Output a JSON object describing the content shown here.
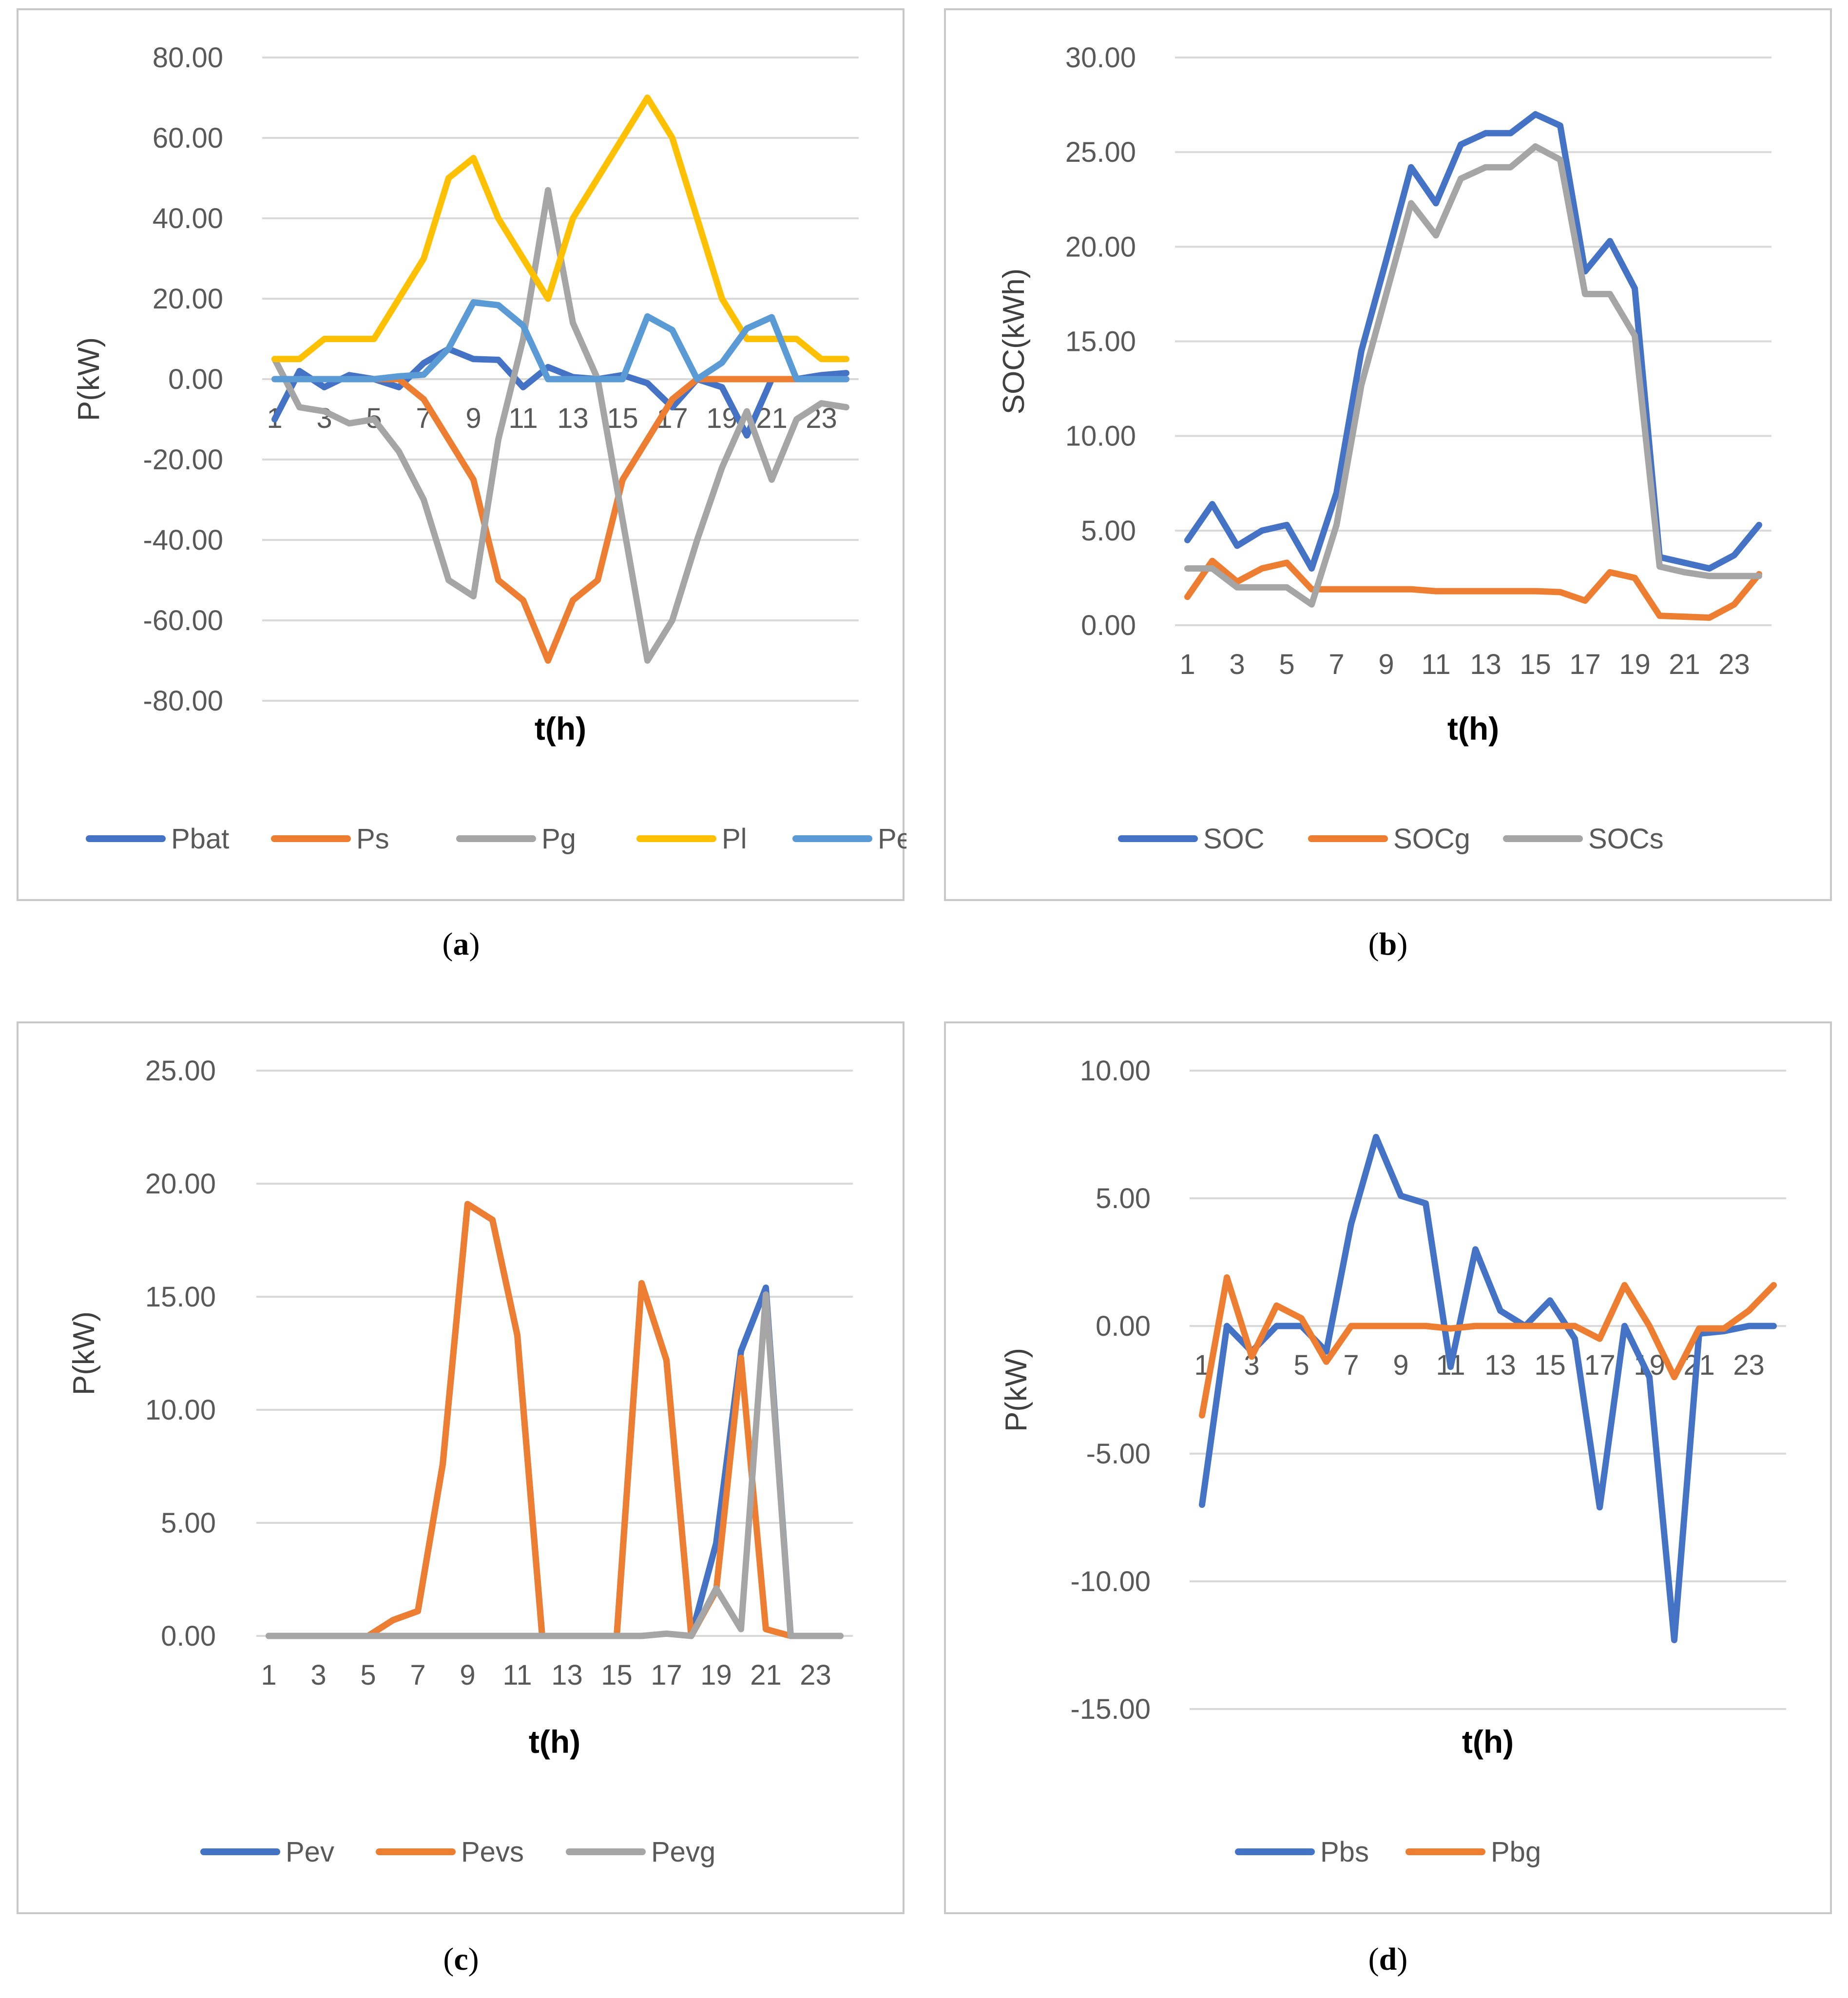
{
  "chart_data": [
    {
      "id": "a",
      "type": "line",
      "caption_label": "a",
      "xlabel": "t(h)",
      "ylabel": "P(kW)",
      "ylim": [
        -80,
        80
      ],
      "ymin": -80,
      "ymax": 80,
      "ytick_step": 20,
      "ytick_labels": [
        "80.00",
        "60.00",
        "40.00",
        "20.00",
        "0.00",
        "-20.00",
        "-40.00",
        "-60.00",
        "-80.00"
      ],
      "x_axis_at": 0,
      "categories": [
        "1",
        "2",
        "3",
        "4",
        "5",
        "6",
        "7",
        "8",
        "9",
        "10",
        "11",
        "12",
        "13",
        "14",
        "15",
        "16",
        "17",
        "18",
        "19",
        "20",
        "21",
        "22",
        "23",
        "24"
      ],
      "xtick_labels": [
        "1",
        "3",
        "5",
        "7",
        "9",
        "11",
        "13",
        "15",
        "17",
        "19",
        "21",
        "23"
      ],
      "series": [
        {
          "name": "Pbat",
          "color": "#4472C4",
          "values": [
            -10,
            2,
            -2,
            1,
            0,
            -2,
            4,
            7.5,
            5,
            4.8,
            -2,
            3,
            0.5,
            0,
            1,
            -1,
            -7,
            0,
            -2,
            -14,
            0,
            0,
            1,
            1.5
          ]
        },
        {
          "name": "Ps",
          "color": "#ED7D31",
          "values": [
            0,
            0,
            0,
            0,
            0,
            0,
            -5,
            -15,
            -25,
            -50,
            -55,
            -70,
            -55,
            -50,
            -25,
            -15,
            -5,
            0,
            0,
            0,
            0,
            0,
            0,
            0
          ]
        },
        {
          "name": "Pg",
          "color": "#A5A5A5",
          "values": [
            5,
            -7,
            -8,
            -11,
            -10,
            -18,
            -30,
            -50,
            -54,
            -15,
            10,
            47,
            14,
            0,
            -35,
            -70,
            -60,
            -40,
            -22,
            -8,
            -25,
            -10,
            -6,
            -7
          ]
        },
        {
          "name": "Pl",
          "color": "#FFC000",
          "values": [
            5,
            5,
            10,
            10,
            10,
            20,
            30,
            50,
            55,
            40,
            30,
            20,
            40,
            50,
            60,
            70,
            60,
            40,
            20,
            10,
            10,
            10,
            5,
            5
          ]
        },
        {
          "name": "Pev",
          "color": "#5B9BD5",
          "values": [
            0,
            0,
            0,
            0,
            0,
            0.7,
            1.1,
            7.6,
            19.1,
            18.4,
            13.3,
            0,
            0,
            0,
            0,
            15.6,
            12.2,
            0,
            4.1,
            12.6,
            15.4,
            0,
            0,
            0
          ]
        }
      ]
    },
    {
      "id": "b",
      "type": "line",
      "caption_label": "b",
      "xlabel": "t(h)",
      "ylabel": "SOC(kWh)",
      "ylim": [
        0,
        30
      ],
      "ymin": 0,
      "ymax": 30,
      "ytick_step": 5,
      "ytick_labels": [
        "30.00",
        "25.00",
        "20.00",
        "15.00",
        "10.00",
        "5.00",
        "0.00"
      ],
      "x_axis_at": 0,
      "categories": [
        "1",
        "2",
        "3",
        "4",
        "5",
        "6",
        "7",
        "8",
        "9",
        "10",
        "11",
        "12",
        "13",
        "14",
        "15",
        "16",
        "17",
        "18",
        "19",
        "20",
        "21",
        "22",
        "23",
        "24"
      ],
      "xtick_labels": [
        "1",
        "3",
        "5",
        "7",
        "9",
        "11",
        "13",
        "15",
        "17",
        "19",
        "21",
        "23"
      ],
      "series": [
        {
          "name": "SOC",
          "color": "#4472C4",
          "values": [
            4.5,
            6.4,
            4.2,
            5,
            5.3,
            3,
            7,
            14.5,
            19.3,
            24.2,
            22.3,
            25.4,
            26,
            26,
            27,
            26.4,
            18.7,
            20.3,
            17.8,
            3.6,
            3.3,
            3,
            3.7,
            5.3
          ]
        },
        {
          "name": "SOCg",
          "color": "#ED7D31",
          "values": [
            1.5,
            3.4,
            2.3,
            3,
            3.3,
            1.9,
            1.9,
            1.9,
            1.9,
            1.9,
            1.8,
            1.8,
            1.8,
            1.8,
            1.8,
            1.75,
            1.3,
            2.8,
            2.5,
            0.5,
            0.45,
            0.4,
            1.1,
            2.7
          ]
        },
        {
          "name": "SOCs",
          "color": "#A5A5A5",
          "values": [
            3,
            3,
            2,
            2,
            2,
            1.1,
            5.3,
            12.7,
            17.5,
            22.3,
            20.6,
            23.6,
            24.2,
            24.2,
            25.3,
            24.6,
            17.5,
            17.5,
            15.3,
            3.1,
            2.8,
            2.6,
            2.6,
            2.6
          ]
        }
      ]
    },
    {
      "id": "c",
      "type": "line",
      "caption_label": "c",
      "xlabel": "t(h)",
      "ylabel": "P(kW)",
      "ylim": [
        0,
        25
      ],
      "ymin": 0,
      "ymax": 25,
      "ytick_step": 5,
      "ytick_labels": [
        "25.00",
        "20.00",
        "15.00",
        "10.00",
        "5.00",
        "0.00"
      ],
      "x_axis_at": 0,
      "categories": [
        "1",
        "2",
        "3",
        "4",
        "5",
        "6",
        "7",
        "8",
        "9",
        "10",
        "11",
        "12",
        "13",
        "14",
        "15",
        "16",
        "17",
        "18",
        "19",
        "20",
        "21",
        "22",
        "23",
        "24"
      ],
      "xtick_labels": [
        "1",
        "3",
        "5",
        "7",
        "9",
        "11",
        "13",
        "15",
        "17",
        "19",
        "21",
        "23"
      ],
      "series": [
        {
          "name": "Pev",
          "color": "#4472C4",
          "values": [
            0,
            0,
            0,
            0,
            0,
            0.7,
            1.1,
            7.6,
            19.1,
            18.4,
            13.3,
            0,
            0,
            0,
            0,
            15.6,
            12.2,
            0,
            4.1,
            12.6,
            15.4,
            0,
            0,
            0
          ]
        },
        {
          "name": "Pevs",
          "color": "#ED7D31",
          "values": [
            0,
            0,
            0,
            0,
            0,
            0.7,
            1.1,
            7.6,
            19.1,
            18.4,
            13.3,
            0,
            0,
            0,
            0,
            15.6,
            12.2,
            0,
            2,
            12.3,
            0.3,
            0,
            0,
            0
          ]
        },
        {
          "name": "Pevg",
          "color": "#A5A5A5",
          "values": [
            0,
            0,
            0,
            0,
            0,
            0,
            0,
            0,
            0,
            0,
            0,
            0,
            0,
            0,
            0,
            0,
            0.1,
            0,
            2.1,
            0.3,
            15.1,
            0,
            0,
            0
          ]
        }
      ]
    },
    {
      "id": "d",
      "type": "line",
      "caption_label": "d",
      "xlabel": "t(h)",
      "ylabel": "P(kW)",
      "ylim": [
        -15,
        10
      ],
      "ymin": -15,
      "ymax": 10,
      "ytick_step": 5,
      "ytick_labels": [
        "10.00",
        "5.00",
        "0.00",
        "-5.00",
        "-10.00",
        "-15.00"
      ],
      "x_axis_at": 0,
      "categories": [
        "1",
        "2",
        "3",
        "4",
        "5",
        "6",
        "7",
        "8",
        "9",
        "10",
        "11",
        "12",
        "13",
        "14",
        "15",
        "16",
        "17",
        "18",
        "19",
        "20",
        "21",
        "22",
        "23",
        "24"
      ],
      "xtick_labels": [
        "1",
        "3",
        "5",
        "7",
        "9",
        "11",
        "13",
        "15",
        "17",
        "19",
        "21",
        "23"
      ],
      "series": [
        {
          "name": "Pbs",
          "color": "#4472C4",
          "values": [
            -7,
            0,
            -1,
            0,
            0,
            -1,
            4,
            7.4,
            5.1,
            4.8,
            -1.6,
            3,
            0.6,
            0,
            1,
            -0.5,
            -7.1,
            0,
            -2,
            -12.3,
            -0.3,
            -0.2,
            0,
            0
          ]
        },
        {
          "name": "Pbg",
          "color": "#ED7D31",
          "values": [
            -3.5,
            1.9,
            -1.2,
            0.8,
            0.3,
            -1.4,
            0,
            0,
            0,
            0,
            -0.1,
            0,
            0,
            0,
            0,
            0,
            -0.5,
            1.6,
            0,
            -2,
            -0.1,
            -0.1,
            0.6,
            1.6
          ]
        }
      ]
    }
  ]
}
